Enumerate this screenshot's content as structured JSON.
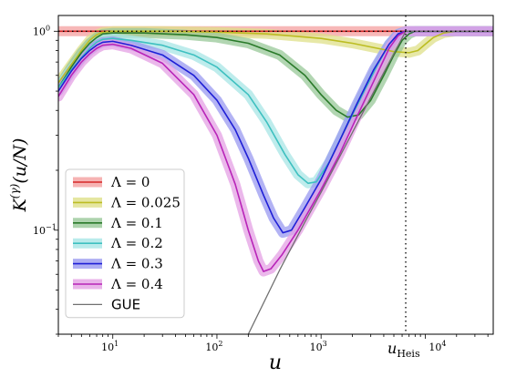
{
  "chart_data": {
    "type": "line",
    "title": "",
    "xlabel": "u",
    "ylabel": "K^(γ)(u/N)",
    "xscale": "log",
    "yscale": "log",
    "xlim": [
      3,
      45000
    ],
    "ylim": [
      0.03,
      1.2
    ],
    "grid": false,
    "legend_position": "bottom-left",
    "x_ticks": [
      {
        "value": 10,
        "label": "10",
        "exp": "1"
      },
      {
        "value": 100,
        "label": "10",
        "exp": "2"
      },
      {
        "value": 1000,
        "label": "10",
        "exp": "3"
      },
      {
        "value": 10000,
        "label": "10",
        "exp": "4"
      }
    ],
    "y_ticks": [
      {
        "value": 1,
        "label": "10",
        "exp": "0"
      },
      {
        "value": 0.1,
        "label": "10",
        "exp": "−1"
      }
    ],
    "vline": {
      "x": 6500,
      "label": "u",
      "label_sub": "Heis",
      "style": "dotted"
    },
    "hline": {
      "y": 1.0,
      "style": "dotted"
    },
    "series": [
      {
        "name": "Λ = 0",
        "color": "#d62728",
        "band": "#f4a0a0",
        "points": [
          [
            3,
            1.0
          ],
          [
            45000,
            1.0
          ]
        ]
      },
      {
        "name": "Λ = 0.025",
        "color": "#bcbd22",
        "band": "#dfe08a",
        "points": [
          [
            3,
            0.55
          ],
          [
            4,
            0.68
          ],
          [
            5,
            0.8
          ],
          [
            6,
            0.9
          ],
          [
            7,
            0.96
          ],
          [
            8,
            0.99
          ],
          [
            10,
            1.0
          ],
          [
            30,
            1.0
          ],
          [
            100,
            0.99
          ],
          [
            300,
            0.97
          ],
          [
            1000,
            0.92
          ],
          [
            2000,
            0.87
          ],
          [
            3500,
            0.82
          ],
          [
            5000,
            0.79
          ],
          [
            7000,
            0.78
          ],
          [
            8500,
            0.8
          ],
          [
            10000,
            0.86
          ],
          [
            12000,
            0.93
          ],
          [
            15000,
            0.98
          ],
          [
            20000,
            1.0
          ],
          [
            45000,
            1.0
          ]
        ]
      },
      {
        "name": "Λ = 0.1",
        "color": "#2a7a2a",
        "band": "#98c898",
        "points": [
          [
            3,
            0.52
          ],
          [
            4,
            0.66
          ],
          [
            5,
            0.78
          ],
          [
            6,
            0.87
          ],
          [
            7,
            0.93
          ],
          [
            8,
            0.97
          ],
          [
            10,
            0.98
          ],
          [
            20,
            0.98
          ],
          [
            50,
            0.96
          ],
          [
            100,
            0.93
          ],
          [
            200,
            0.87
          ],
          [
            400,
            0.76
          ],
          [
            700,
            0.6
          ],
          [
            1000,
            0.48
          ],
          [
            1400,
            0.4
          ],
          [
            1800,
            0.37
          ],
          [
            2300,
            0.38
          ],
          [
            3000,
            0.45
          ],
          [
            4000,
            0.6
          ],
          [
            5000,
            0.76
          ],
          [
            6000,
            0.9
          ],
          [
            7000,
            0.97
          ],
          [
            8000,
            1.0
          ],
          [
            45000,
            1.0
          ]
        ]
      },
      {
        "name": "Λ = 0.2",
        "color": "#3ec0c0",
        "band": "#a8e6e6",
        "points": [
          [
            3,
            0.52
          ],
          [
            4,
            0.64
          ],
          [
            5,
            0.74
          ],
          [
            6,
            0.82
          ],
          [
            7,
            0.88
          ],
          [
            8,
            0.91
          ],
          [
            10,
            0.92
          ],
          [
            15,
            0.9
          ],
          [
            30,
            0.85
          ],
          [
            60,
            0.76
          ],
          [
            100,
            0.66
          ],
          [
            200,
            0.48
          ],
          [
            300,
            0.35
          ],
          [
            450,
            0.24
          ],
          [
            600,
            0.19
          ],
          [
            750,
            0.172
          ],
          [
            900,
            0.175
          ],
          [
            1200,
            0.22
          ],
          [
            1800,
            0.34
          ],
          [
            2500,
            0.48
          ],
          [
            3500,
            0.68
          ],
          [
            4500,
            0.86
          ],
          [
            5500,
            0.97
          ],
          [
            6500,
            1.0
          ],
          [
            45000,
            1.0
          ]
        ]
      },
      {
        "name": "Λ = 0.3",
        "color": "#1f1fd6",
        "band": "#9a9af0",
        "points": [
          [
            3,
            0.5
          ],
          [
            4,
            0.63
          ],
          [
            5,
            0.73
          ],
          [
            6,
            0.8
          ],
          [
            7,
            0.85
          ],
          [
            8,
            0.88
          ],
          [
            10,
            0.89
          ],
          [
            15,
            0.85
          ],
          [
            30,
            0.76
          ],
          [
            60,
            0.6
          ],
          [
            100,
            0.45
          ],
          [
            150,
            0.32
          ],
          [
            200,
            0.23
          ],
          [
            280,
            0.15
          ],
          [
            350,
            0.115
          ],
          [
            430,
            0.097
          ],
          [
            520,
            0.1
          ],
          [
            700,
            0.13
          ],
          [
            1000,
            0.18
          ],
          [
            1500,
            0.28
          ],
          [
            2200,
            0.43
          ],
          [
            3200,
            0.64
          ],
          [
            4500,
            0.86
          ],
          [
            5500,
            0.97
          ],
          [
            6500,
            1.0
          ],
          [
            45000,
            1.0
          ]
        ]
      },
      {
        "name": "Λ = 0.4",
        "color": "#b824b8",
        "band": "#e4a0e4",
        "points": [
          [
            3,
            0.47
          ],
          [
            4,
            0.6
          ],
          [
            5,
            0.7
          ],
          [
            6,
            0.77
          ],
          [
            7,
            0.82
          ],
          [
            8,
            0.85
          ],
          [
            10,
            0.86
          ],
          [
            15,
            0.82
          ],
          [
            30,
            0.69
          ],
          [
            60,
            0.48
          ],
          [
            100,
            0.3
          ],
          [
            150,
            0.17
          ],
          [
            200,
            0.1
          ],
          [
            250,
            0.07
          ],
          [
            280,
            0.062
          ],
          [
            330,
            0.064
          ],
          [
            420,
            0.075
          ],
          [
            600,
            0.1
          ],
          [
            1000,
            0.16
          ],
          [
            1500,
            0.24
          ],
          [
            2200,
            0.37
          ],
          [
            3200,
            0.56
          ],
          [
            4500,
            0.82
          ],
          [
            5500,
            0.95
          ],
          [
            6500,
            1.0
          ],
          [
            45000,
            1.0
          ]
        ]
      },
      {
        "name": "GUE",
        "color": "#707070",
        "band": null,
        "points": [
          [
            200,
            0.03
          ],
          [
            400,
            0.063
          ],
          [
            700,
            0.11
          ],
          [
            1000,
            0.155
          ],
          [
            2000,
            0.31
          ],
          [
            4000,
            0.62
          ],
          [
            6500,
            1.0
          ],
          [
            45000,
            1.0
          ]
        ]
      }
    ]
  }
}
